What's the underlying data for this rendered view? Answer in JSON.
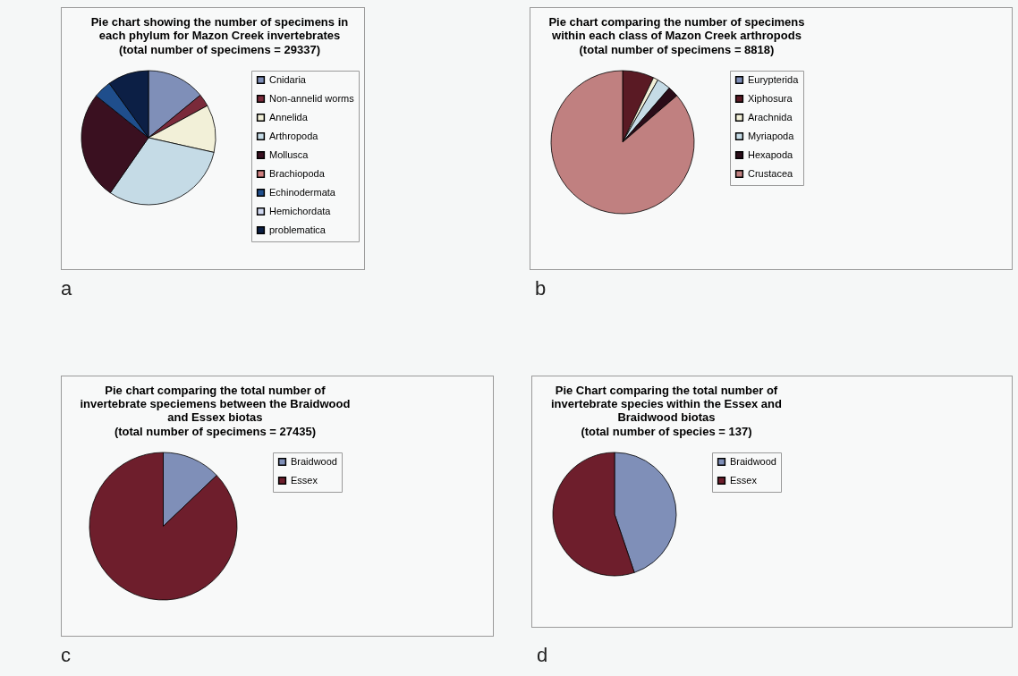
{
  "chart_data": [
    {
      "type": "pie",
      "title": "Pie chart showing the number of specimens in each phylum for Mazon Creek invertebrates",
      "subtitle": "(total number of specimens = 29337)",
      "categories": [
        "Cnidaria",
        "Non-annelid worms",
        "Annelida",
        "Arthropoda",
        "Mollusca",
        "Brachiopoda",
        "Echinodermata",
        "Hemichordata",
        "problematica"
      ],
      "values": [
        14,
        3,
        11.4,
        31,
        26,
        null,
        4.3,
        null,
        9.9
      ],
      "colors": [
        "#7f8fb8",
        "#7a2a3a",
        "#f2f0d8",
        "#c5dbe6",
        "#3a1020",
        "#d08080",
        "#1f4e8c",
        "#d0d8f0",
        "#0c1f45"
      ],
      "legend": "right",
      "annotations": [
        "a"
      ]
    },
    {
      "type": "pie",
      "title": "Pie chart comparing the number of specimens within each class of Mazon Creek arthropods",
      "subtitle": "(total number of specimens = 8818)",
      "categories": [
        "Eurypterida",
        "Xiphosura",
        "Arachnida",
        "Myriapoda",
        "Hexapoda",
        "Crustacea"
      ],
      "values": [
        null,
        7.1,
        1.1,
        3.1,
        2.4,
        86.2
      ],
      "colors": [
        "#7f8fb8",
        "#5a1a24",
        "#f2f0d8",
        "#c5dbe6",
        "#2a0c18",
        "#c08080"
      ],
      "legend": "right",
      "annotations": [
        "b"
      ]
    },
    {
      "type": "pie",
      "title": "Pie chart comparing the total number of invertebrate speciemens between the Braidwood and Essex biotas",
      "subtitle": "(total number of specimens = 27435)",
      "categories": [
        "Braidwood",
        "Essex"
      ],
      "values": [
        12.9,
        87.1
      ],
      "colors": [
        "#7f8fb8",
        "#6e1e2c"
      ],
      "legend": "right",
      "annotations": [
        "c"
      ]
    },
    {
      "type": "pie",
      "title": "Pie Chart comparing the total number of invertebrate species within the Essex and Braidwood biotas",
      "subtitle": "(total number of species = 137)",
      "categories": [
        "Braidwood",
        "Essex"
      ],
      "values": [
        44.8,
        55.2
      ],
      "colors": [
        "#7f8fb8",
        "#6e1e2c"
      ],
      "legend": "right",
      "annotations": [
        "d"
      ]
    }
  ]
}
